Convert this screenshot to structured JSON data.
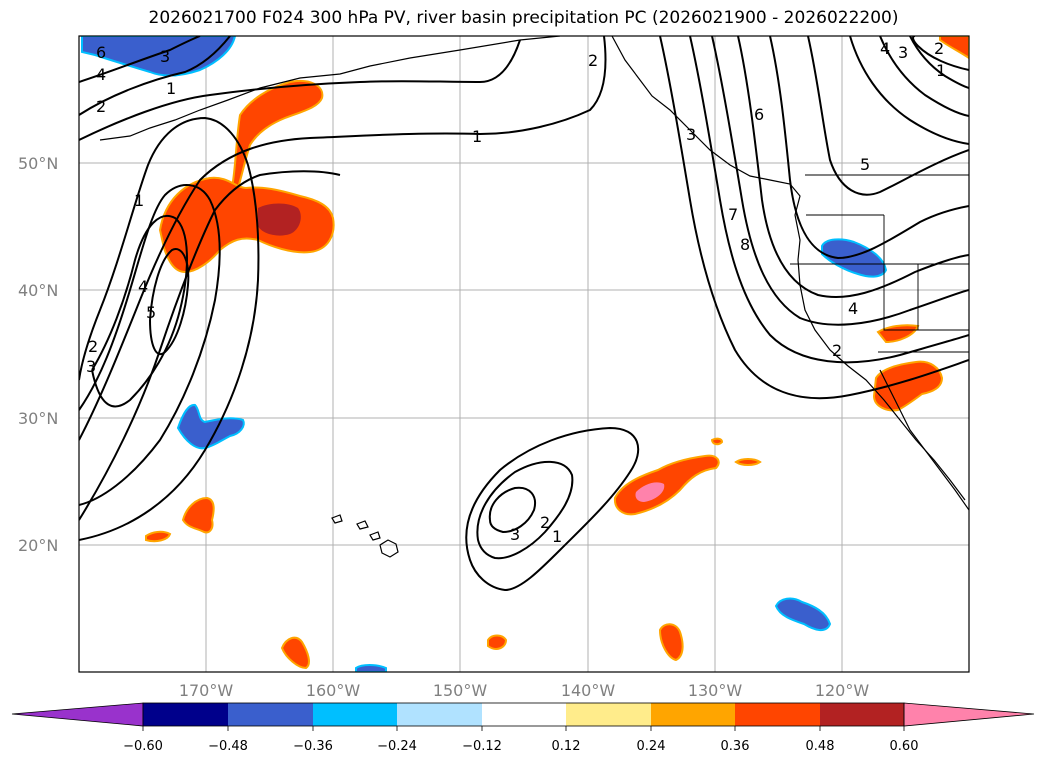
{
  "title": "2026021700 F024 300 hPa PV, river basin precipitation PC (2026021900 - 2026022200)",
  "latitude_labels": [
    "50°N",
    "40°N",
    "30°N",
    "20°N"
  ],
  "longitude_labels": [
    "170°W",
    "160°W",
    "150°W",
    "140°W",
    "130°W",
    "120°W"
  ],
  "map_extent": {
    "lon_west": -180,
    "lon_east": -110,
    "lat_south": 10,
    "lat_north": 60
  },
  "grid_lons": [
    -170,
    -160,
    -150,
    -140,
    -130,
    -120
  ],
  "grid_lats": [
    50,
    40,
    30,
    20
  ],
  "colorbar": {
    "ticks": [
      "−0.60",
      "−0.48",
      "−0.36",
      "−0.24",
      "−0.12",
      "0.12",
      "0.24",
      "0.36",
      "0.48",
      "0.60"
    ],
    "colors": [
      "#9932cc",
      "#00008b",
      "#3a5fcd",
      "#00bfff",
      "#b0e2ff",
      "#ffffff",
      "#ffec8b",
      "#ffa500",
      "#ff4500",
      "#b22222",
      "#ff82ab"
    ]
  },
  "pv_contour_labels": [
    "6",
    "3",
    "1",
    "4",
    "2",
    "1",
    "5",
    "4",
    "3",
    "2",
    "1",
    "2",
    "3",
    "6",
    "8",
    "7",
    "4",
    "3",
    "2",
    "1",
    "5",
    "4",
    "2",
    "3",
    "2",
    "1"
  ],
  "colors": {
    "positive_anomaly": "#ff4500",
    "strong_positive": "#b22222",
    "max_positive": "#ff82ab",
    "negative_anomaly": "#3a5fcd",
    "weak_negative": "#00bfff",
    "gridline": "#b0b0b0"
  }
}
